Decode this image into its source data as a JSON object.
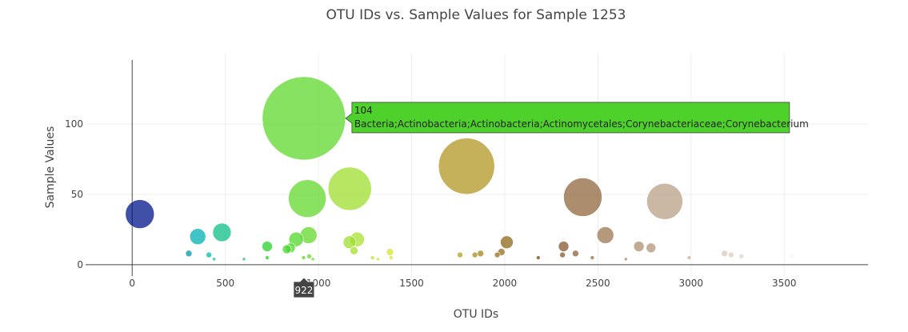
{
  "chart_data": {
    "type": "scatter",
    "title": "OTU IDs vs. Sample Values for Sample 1253",
    "xlabel": "OTU IDs",
    "ylabel": "Sample Values",
    "xlim": [
      -250,
      3950
    ],
    "ylim": [
      -8,
      150
    ],
    "xticks": [
      0,
      500,
      1000,
      1500,
      2000,
      2500,
      3000,
      3500
    ],
    "yticks": [
      0,
      50,
      100
    ],
    "grid": true,
    "colorscale": "Earth",
    "points": [
      {
        "x": 41,
        "y": 36
      },
      {
        "x": 352,
        "y": 20
      },
      {
        "x": 482,
        "y": 23
      },
      {
        "x": 304,
        "y": 8
      },
      {
        "x": 412,
        "y": 7
      },
      {
        "x": 440,
        "y": 4
      },
      {
        "x": 600,
        "y": 4
      },
      {
        "x": 725,
        "y": 13
      },
      {
        "x": 725,
        "y": 5
      },
      {
        "x": 830,
        "y": 11
      },
      {
        "x": 850,
        "y": 12
      },
      {
        "x": 880,
        "y": 18
      },
      {
        "x": 922,
        "y": 104
      },
      {
        "x": 940,
        "y": 47
      },
      {
        "x": 947,
        "y": 21
      },
      {
        "x": 920,
        "y": 5
      },
      {
        "x": 950,
        "y": 6
      },
      {
        "x": 970,
        "y": 4
      },
      {
        "x": 1167,
        "y": 16
      },
      {
        "x": 1168,
        "y": 54
      },
      {
        "x": 1191,
        "y": 10
      },
      {
        "x": 1208,
        "y": 18
      },
      {
        "x": 1290,
        "y": 5
      },
      {
        "x": 1320,
        "y": 4
      },
      {
        "x": 1384,
        "y": 9
      },
      {
        "x": 1390,
        "y": 5
      },
      {
        "x": 1760,
        "y": 7
      },
      {
        "x": 1795,
        "y": 70
      },
      {
        "x": 1840,
        "y": 7
      },
      {
        "x": 1870,
        "y": 8
      },
      {
        "x": 1960,
        "y": 7
      },
      {
        "x": 1982,
        "y": 9
      },
      {
        "x": 2011,
        "y": 16
      },
      {
        "x": 2180,
        "y": 5
      },
      {
        "x": 2310,
        "y": 7
      },
      {
        "x": 2316,
        "y": 13
      },
      {
        "x": 2380,
        "y": 8
      },
      {
        "x": 2419,
        "y": 48
      },
      {
        "x": 2470,
        "y": 5
      },
      {
        "x": 2540,
        "y": 21
      },
      {
        "x": 2650,
        "y": 4
      },
      {
        "x": 2720,
        "y": 13
      },
      {
        "x": 2785,
        "y": 12
      },
      {
        "x": 2859,
        "y": 45
      },
      {
        "x": 2990,
        "y": 5
      },
      {
        "x": 3180,
        "y": 8
      },
      {
        "x": 3215,
        "y": 7
      },
      {
        "x": 3270,
        "y": 6
      },
      {
        "x": 3540,
        "y": 6
      }
    ],
    "hover": {
      "point_index": 12,
      "value_text": "104",
      "label_text": "Bacteria;Actinobacteria;Actinobacteria;Actinomycetales;Corynebacteriaceae;Corynebacterium",
      "color": "#4fd12b"
    },
    "spike_label": "922"
  }
}
